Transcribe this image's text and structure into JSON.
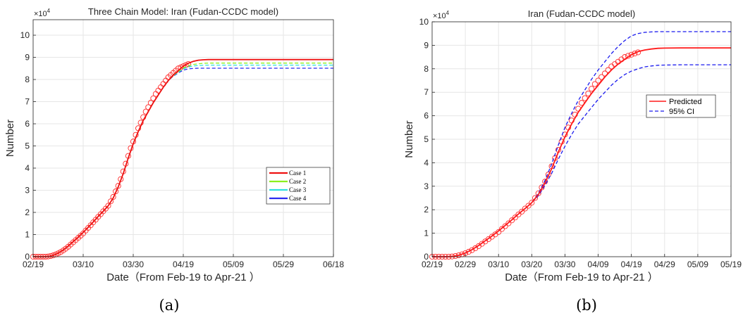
{
  "chart_data": [
    {
      "type": "line",
      "title": "Three Chain Model: Iran (Fudan-CCDC model)",
      "xlabel": "Date（From Feb-19 to Apr-21 ）",
      "ylabel": "Number",
      "exponent_label": "×10",
      "exponent_power": "4",
      "caption": "(a)",
      "x_tick_labels": [
        "02/19",
        "03/10",
        "03/30",
        "04/19",
        "05/09",
        "05/29",
        "06/18"
      ],
      "x_tick_days": [
        0,
        20,
        40,
        60,
        80,
        100,
        120
      ],
      "y_tick_labels": [
        "0",
        "1",
        "2",
        "3",
        "4",
        "5",
        "6",
        "7",
        "8",
        "9",
        "10"
      ],
      "xlim_days": [
        0,
        120
      ],
      "ylim": [
        0,
        107000
      ],
      "grid": true,
      "legend_position": "right",
      "legend_font": "serif",
      "observed": {
        "marker": "circle",
        "color": "#ff2a2a",
        "x_days": [
          0,
          1,
          2,
          3,
          4,
          5,
          6,
          7,
          8,
          9,
          10,
          11,
          12,
          13,
          14,
          15,
          16,
          17,
          18,
          19,
          20,
          21,
          22,
          23,
          24,
          25,
          26,
          27,
          28,
          29,
          30,
          31,
          32,
          33,
          34,
          35,
          36,
          37,
          38,
          39,
          40,
          41,
          42,
          43,
          44,
          45,
          46,
          47,
          48,
          49,
          50,
          51,
          52,
          53,
          54,
          55,
          56,
          57,
          58,
          59,
          60,
          61,
          62
        ],
        "values": [
          0,
          0,
          0,
          0,
          0,
          0,
          100,
          300,
          600,
          1000,
          1500,
          2100,
          2800,
          3600,
          4500,
          5500,
          6500,
          7500,
          8500,
          9500,
          10500,
          11800,
          13000,
          14200,
          15500,
          16700,
          18000,
          19200,
          20500,
          21700,
          23000,
          25000,
          27000,
          29500,
          32000,
          35000,
          38500,
          42000,
          45500,
          49000,
          52000,
          55000,
          58000,
          60500,
          63000,
          65500,
          67500,
          69500,
          71500,
          73500,
          75000,
          76500,
          78000,
          79500,
          81000,
          82000,
          83000,
          84000,
          85000,
          85500,
          86000,
          86500,
          87000
        ]
      },
      "series": [
        {
          "name": "Case 1",
          "color": "#ee1111",
          "dash": "solid",
          "x_days": [
            0,
            4,
            6,
            8,
            10,
            12,
            14,
            16,
            18,
            20,
            22,
            24,
            26,
            28,
            30,
            32,
            34,
            36,
            38,
            40,
            42,
            44,
            46,
            48,
            50,
            52,
            54,
            56,
            58,
            60,
            62,
            64,
            66,
            68,
            70,
            75,
            80,
            90,
            100,
            110,
            120
          ],
          "values": [
            0,
            0,
            100,
            600,
            1600,
            3000,
            4800,
            6800,
            8800,
            11000,
            13300,
            15700,
            18200,
            20500,
            23000,
            26500,
            31500,
            37500,
            44500,
            51000,
            56500,
            61500,
            65500,
            69500,
            73000,
            76500,
            79500,
            82000,
            84000,
            86000,
            87300,
            88200,
            88700,
            88900,
            89000,
            89000,
            89000,
            89000,
            89000,
            89000,
            89000
          ]
        },
        {
          "name": "Case 2",
          "color": "#8cf01e",
          "dash": "dashed",
          "x_days": [
            0,
            4,
            6,
            8,
            10,
            12,
            14,
            16,
            18,
            20,
            22,
            24,
            26,
            28,
            30,
            32,
            34,
            36,
            38,
            40,
            42,
            44,
            46,
            48,
            50,
            52,
            54,
            56,
            58,
            60,
            62,
            64,
            66,
            68,
            70,
            75,
            80,
            90,
            100,
            110,
            120
          ],
          "values": [
            0,
            0,
            100,
            600,
            1600,
            3000,
            4800,
            6800,
            8800,
            11000,
            13300,
            15700,
            18200,
            20500,
            23000,
            26500,
            31500,
            37500,
            44500,
            51000,
            56500,
            61500,
            65500,
            69500,
            73000,
            76500,
            79500,
            81800,
            83500,
            85200,
            86200,
            86800,
            87100,
            87300,
            87400,
            87400,
            87400,
            87400,
            87400,
            87400,
            87400
          ]
        },
        {
          "name": "Case 3",
          "color": "#2ee0e0",
          "dash": "dashed",
          "x_days": [
            0,
            4,
            6,
            8,
            10,
            12,
            14,
            16,
            18,
            20,
            22,
            24,
            26,
            28,
            30,
            32,
            34,
            36,
            38,
            40,
            42,
            44,
            46,
            48,
            50,
            52,
            54,
            56,
            58,
            60,
            62,
            64,
            66,
            68,
            70,
            75,
            80,
            90,
            100,
            110,
            120
          ],
          "values": [
            0,
            0,
            100,
            600,
            1600,
            3000,
            4800,
            6800,
            8800,
            11000,
            13300,
            15700,
            18200,
            20500,
            23000,
            26500,
            31500,
            37500,
            44500,
            51000,
            56500,
            61500,
            65500,
            69500,
            73000,
            76500,
            79500,
            81700,
            83300,
            84800,
            85600,
            86100,
            86300,
            86400,
            86500,
            86500,
            86500,
            86500,
            86500,
            86500,
            86500
          ]
        },
        {
          "name": "Case 4",
          "color": "#2b2bf0",
          "dash": "dashed",
          "x_days": [
            0,
            4,
            6,
            8,
            10,
            12,
            14,
            16,
            18,
            20,
            22,
            24,
            26,
            28,
            30,
            32,
            34,
            36,
            38,
            40,
            42,
            44,
            46,
            48,
            50,
            52,
            54,
            56,
            58,
            60,
            62,
            64,
            66,
            68,
            70,
            75,
            80,
            90,
            100,
            110,
            120
          ],
          "values": [
            0,
            0,
            100,
            600,
            1600,
            3000,
            4800,
            6800,
            8800,
            11000,
            13300,
            15700,
            18200,
            20500,
            23000,
            26500,
            31500,
            37500,
            44500,
            51000,
            56500,
            61500,
            65500,
            69500,
            73000,
            76500,
            79500,
            81500,
            83000,
            84200,
            84800,
            85000,
            85100,
            85100,
            85100,
            85100,
            85100,
            85100,
            85100,
            85100,
            85100
          ]
        }
      ]
    },
    {
      "type": "line",
      "title": "Iran (Fudan-CCDC model)",
      "xlabel": "Date（From Feb-19 to Apr-21 ）",
      "ylabel": "Number",
      "exponent_label": "×10",
      "exponent_power": "4",
      "caption": "(b)",
      "x_tick_labels": [
        "02/19",
        "02/29",
        "03/10",
        "03/20",
        "03/30",
        "04/09",
        "04/19",
        "04/29",
        "05/09",
        "05/19"
      ],
      "x_tick_days": [
        0,
        10,
        20,
        30,
        40,
        50,
        60,
        70,
        80,
        90
      ],
      "y_tick_labels": [
        "0",
        "1",
        "2",
        "3",
        "4",
        "5",
        "6",
        "7",
        "8",
        "9",
        "10"
      ],
      "xlim_days": [
        0,
        90
      ],
      "ylim": [
        0,
        100000
      ],
      "grid": true,
      "legend_position": "right",
      "legend_font": "sans",
      "observed": {
        "marker": "circle",
        "color": "#ff2a2a",
        "x_days": [
          0,
          1,
          2,
          3,
          4,
          5,
          6,
          7,
          8,
          9,
          10,
          11,
          12,
          13,
          14,
          15,
          16,
          17,
          18,
          19,
          20,
          21,
          22,
          23,
          24,
          25,
          26,
          27,
          28,
          29,
          30,
          31,
          32,
          33,
          34,
          35,
          36,
          37,
          38,
          39,
          40,
          41,
          42,
          43,
          44,
          45,
          46,
          47,
          48,
          49,
          50,
          51,
          52,
          53,
          54,
          55,
          56,
          57,
          58,
          59,
          60,
          61,
          62
        ],
        "values": [
          0,
          0,
          0,
          0,
          0,
          0,
          100,
          300,
          600,
          1000,
          1500,
          2100,
          2800,
          3600,
          4500,
          5500,
          6500,
          7500,
          8500,
          9500,
          10500,
          11800,
          13000,
          14200,
          15500,
          16700,
          18000,
          19200,
          20500,
          21700,
          23000,
          25000,
          27000,
          29500,
          32000,
          35000,
          38500,
          42000,
          45500,
          49000,
          52000,
          55000,
          58000,
          60500,
          63000,
          65500,
          67500,
          69500,
          71500,
          73500,
          75000,
          76500,
          78000,
          79500,
          81000,
          82000,
          83000,
          84000,
          85000,
          85500,
          86000,
          86500,
          87000
        ]
      },
      "series": [
        {
          "name": "Predicted",
          "color": "#ff1a1a",
          "dash": "solid",
          "x_days": [
            0,
            4,
            6,
            8,
            10,
            12,
            14,
            16,
            18,
            20,
            22,
            24,
            26,
            28,
            30,
            32,
            34,
            36,
            38,
            40,
            42,
            44,
            46,
            48,
            50,
            52,
            54,
            56,
            58,
            60,
            62,
            64,
            66,
            68,
            70,
            75,
            80,
            85,
            90
          ],
          "values": [
            0,
            0,
            100,
            600,
            1600,
            3000,
            4800,
            6800,
            8800,
            11000,
            13300,
            15700,
            18200,
            20500,
            23000,
            26500,
            31500,
            37500,
            44500,
            51000,
            56500,
            61500,
            65500,
            69500,
            73000,
            76500,
            79500,
            82000,
            84000,
            86000,
            87300,
            88000,
            88400,
            88700,
            88800,
            88900,
            88900,
            88900,
            88900
          ]
        },
        {
          "name": "95% CI",
          "color": "#1a1aee",
          "dash": "dashed",
          "x_days": [
            0,
            4,
            6,
            8,
            10,
            12,
            14,
            16,
            18,
            20,
            22,
            24,
            26,
            28,
            30,
            32,
            34,
            36,
            38,
            40,
            42,
            44,
            46,
            48,
            50,
            52,
            54,
            56,
            58,
            60,
            62,
            64,
            66,
            68,
            70,
            75,
            80,
            85,
            90
          ],
          "values": [
            0,
            0,
            100,
            600,
            1600,
            3000,
            4800,
            6800,
            8800,
            11000,
            13300,
            15700,
            18200,
            20500,
            23000,
            27000,
            32500,
            39500,
            47500,
            55000,
            61000,
            66500,
            71000,
            75500,
            79500,
            83000,
            86500,
            89500,
            92000,
            94000,
            95000,
            95500,
            95700,
            95800,
            95800,
            95800,
            95800,
            95800,
            95800
          ]
        },
        {
          "name": "",
          "color": "#1a1aee",
          "dash": "dashed",
          "x_days": [
            0,
            4,
            6,
            8,
            10,
            12,
            14,
            16,
            18,
            20,
            22,
            24,
            26,
            28,
            30,
            32,
            34,
            36,
            38,
            40,
            42,
            44,
            46,
            48,
            50,
            52,
            54,
            56,
            58,
            60,
            62,
            64,
            66,
            68,
            70,
            75,
            80,
            85,
            90
          ],
          "values": [
            0,
            0,
            100,
            600,
            1600,
            3000,
            4800,
            6800,
            8800,
            11000,
            13300,
            15700,
            18200,
            20500,
            23000,
            26000,
            30500,
            35500,
            41500,
            47000,
            52000,
            56500,
            60000,
            63500,
            67000,
            70000,
            73000,
            75500,
            77500,
            79000,
            80000,
            80800,
            81200,
            81500,
            81600,
            81700,
            81700,
            81700,
            81700
          ]
        }
      ]
    }
  ]
}
